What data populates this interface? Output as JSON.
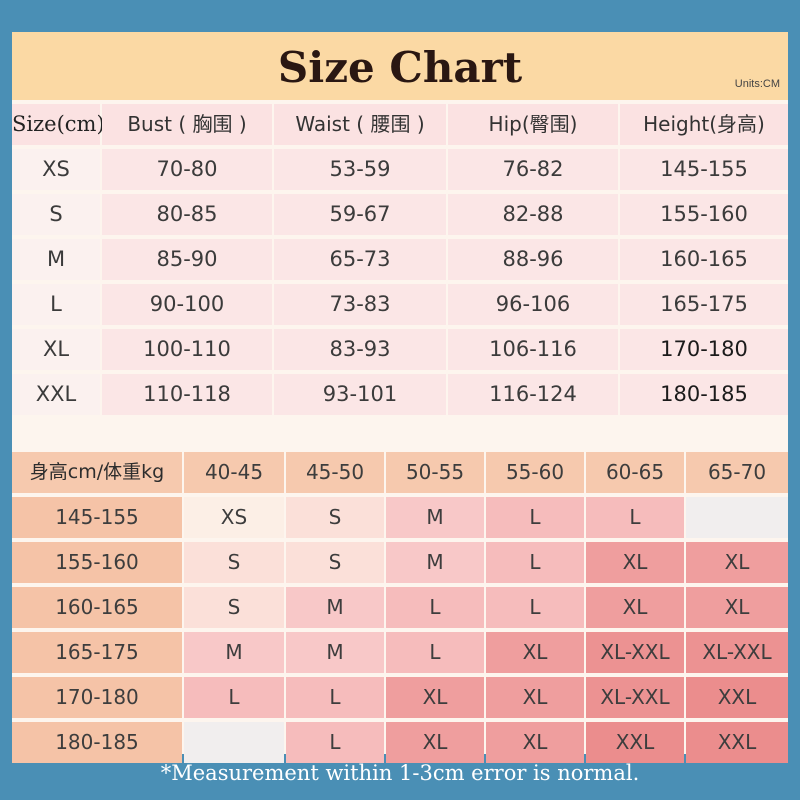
{
  "title": "Size Chart",
  "units": "Units:CM",
  "upper_table": {
    "headers": [
      "Size(cm)",
      "Bust ( 胸围 )",
      "Waist ( 腰围 )",
      "Hip(臀围)",
      "Height(身高)"
    ],
    "rows": [
      [
        "XS",
        "70-80",
        "53-59",
        "76-82",
        "145-155"
      ],
      [
        "S",
        "80-85",
        "59-67",
        "82-88",
        "155-160"
      ],
      [
        "M",
        "85-90",
        "65-73",
        "88-96",
        "160-165"
      ],
      [
        "L",
        "90-100",
        "73-83",
        "96-106",
        "165-175"
      ],
      [
        "XL",
        "100-110",
        "83-93",
        "106-116",
        "170-180"
      ],
      [
        "XXL",
        "110-118",
        "93-101",
        "116-124",
        "180-185"
      ]
    ]
  },
  "lower_table": {
    "corner": "身高cm/体重kg",
    "weights": [
      "40-45",
      "45-50",
      "50-55",
      "55-60",
      "60-65",
      "65-70"
    ],
    "rows": [
      {
        "height": "145-155",
        "sizes": [
          "XS",
          "S",
          "M",
          "L",
          "L",
          ""
        ]
      },
      {
        "height": "155-160",
        "sizes": [
          "S",
          "S",
          "M",
          "L",
          "XL",
          "XL"
        ]
      },
      {
        "height": "160-165",
        "sizes": [
          "S",
          "M",
          "L",
          "L",
          "XL",
          "XL"
        ]
      },
      {
        "height": "165-175",
        "sizes": [
          "M",
          "M",
          "L",
          "XL",
          "XL-XXL",
          "XL-XXL"
        ]
      },
      {
        "height": "170-180",
        "sizes": [
          "L",
          "L",
          "XL",
          "XL",
          "XL-XXL",
          "XXL"
        ]
      },
      {
        "height": "180-185",
        "sizes": [
          "",
          "L",
          "XL",
          "XL",
          "XXL",
          "XXL"
        ]
      }
    ],
    "size_colors": {
      "": "#f1eeee",
      "XS": "#fcefe6",
      "S": "#fbe0d9",
      "M": "#f8c8c8",
      "L": "#f6bcbc",
      "XL": "#ef9e9e",
      "XL-XXL": "#ec9292",
      "XXL": "#eb8d8d"
    }
  },
  "note": "*Measurement within 1-3cm error is normal."
}
